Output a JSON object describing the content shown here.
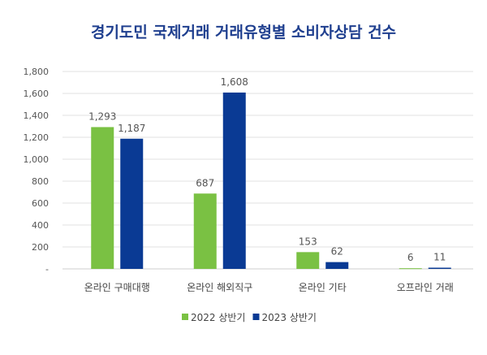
{
  "chart_data": {
    "type": "bar",
    "title": "경기도민 국제거래 거래유형별 소비자상담 건수",
    "categories": [
      "온라인 구매대행",
      "온라인 해외직구",
      "온라인 기타",
      "오프라인 거래"
    ],
    "series": [
      {
        "name": "2022 상반기",
        "values": [
          1293,
          687,
          153,
          6
        ],
        "labels": [
          "1,293",
          "687",
          "153",
          "6"
        ],
        "color": "#7ac143"
      },
      {
        "name": "2023 상반기",
        "values": [
          1187,
          1608,
          62,
          11
        ],
        "labels": [
          "1,187",
          "1,608",
          "62",
          "11"
        ],
        "color": "#0a3a94"
      }
    ],
    "ylim": [
      0,
      1800
    ],
    "yticks": [
      0,
      200,
      400,
      600,
      800,
      1000,
      1200,
      1400,
      1600,
      1800
    ],
    "ytick_labels": [
      "-",
      "200",
      "400",
      "600",
      "800",
      "1,000",
      "1,200",
      "1,400",
      "1,600",
      "1,800"
    ],
    "grid": true,
    "legend_position": "bottom",
    "title_color": "#1f3f8f"
  }
}
